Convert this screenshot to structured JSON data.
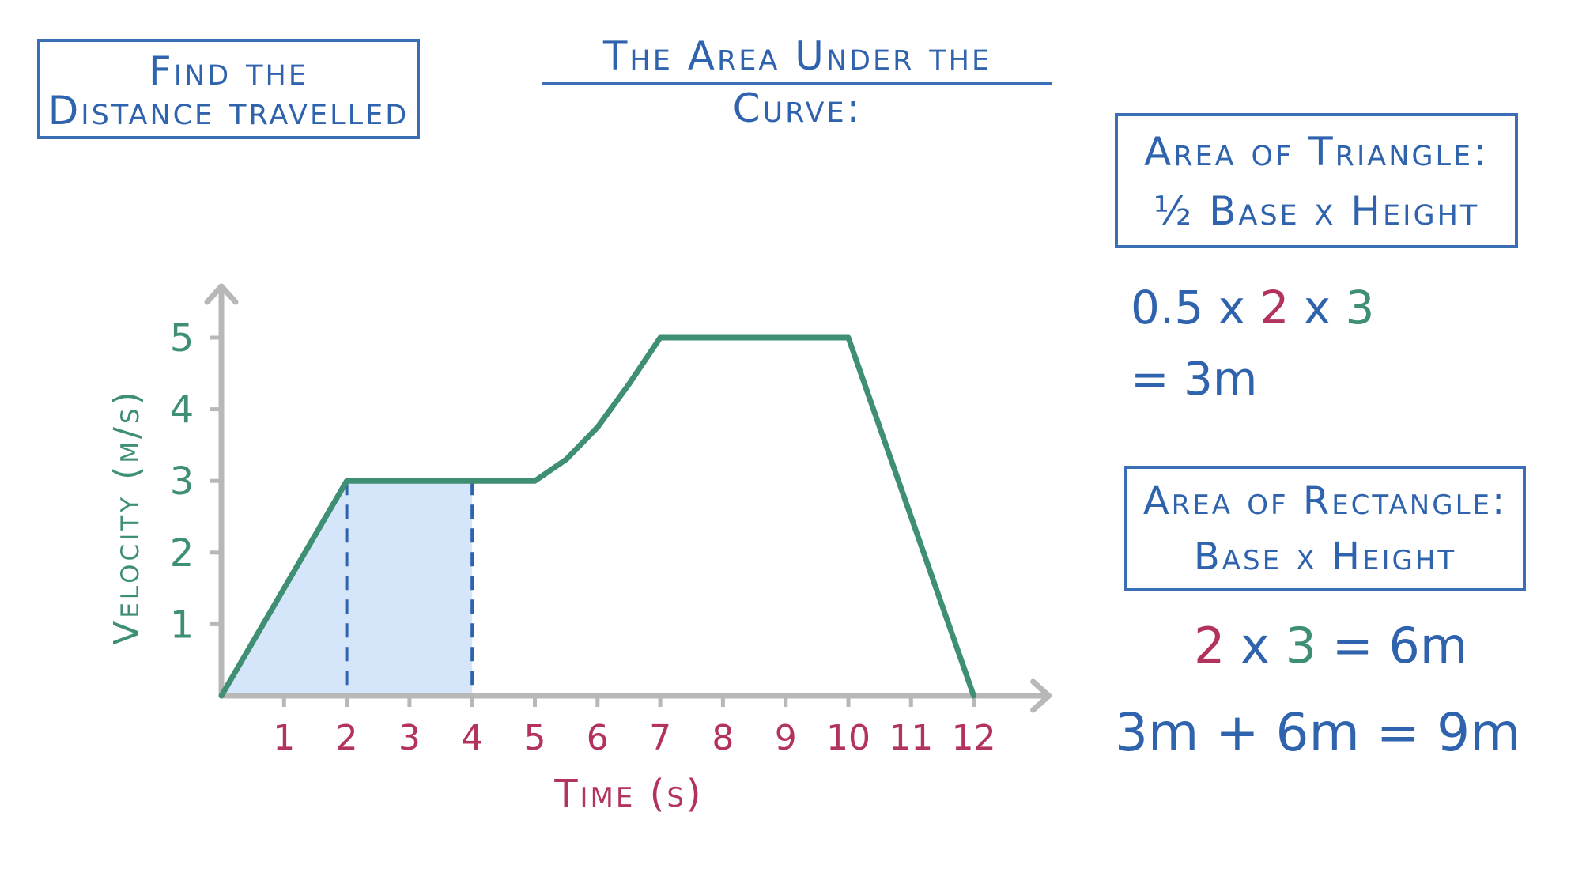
{
  "title_box": {
    "line1": "Find the",
    "line2": "Distance travelled"
  },
  "heading": "The Area Under the Curve:",
  "triangle_box": {
    "line1": "Area of Triangle:",
    "line2": "½ Base x Height"
  },
  "calc_triangle": {
    "a": "0.5 x ",
    "b": "2",
    "c": " x ",
    "d": "3",
    "result": "= 3m"
  },
  "rect_box": {
    "line1": "Area of Rectangle:",
    "line2": "Base x Height"
  },
  "calc_rect": {
    "a": "2",
    "b": " x ",
    "c": "3",
    "d": " = 6m"
  },
  "calc_total": "3m + 6m = 9m",
  "colors": {
    "blue": "#2f63ad",
    "green": "#3f8f74",
    "pink": "#b3335f",
    "shade": "#d6e6fa",
    "axis": "#b8b8b8"
  },
  "chart_data": {
    "type": "line",
    "xlabel": "Time (s)",
    "ylabel": "Velocity (m/s)",
    "xlim": [
      0,
      12
    ],
    "ylim": [
      0,
      5
    ],
    "x_ticks": [
      "1",
      "2",
      "3",
      "4",
      "5",
      "6",
      "7",
      "8",
      "9",
      "10",
      "11",
      "12"
    ],
    "y_ticks": [
      "1",
      "2",
      "3",
      "4",
      "5"
    ],
    "series": [
      {
        "x": [
          0,
          2,
          4,
          5,
          5.5,
          6,
          6.5,
          7,
          10,
          12
        ],
        "y": [
          0,
          3,
          3,
          3,
          3.3,
          3.75,
          4.35,
          5,
          5,
          0
        ]
      }
    ],
    "shaded_region": {
      "x_from": 0,
      "x_to": 4
    },
    "dashed_lines_at_x": [
      2,
      4
    ]
  }
}
